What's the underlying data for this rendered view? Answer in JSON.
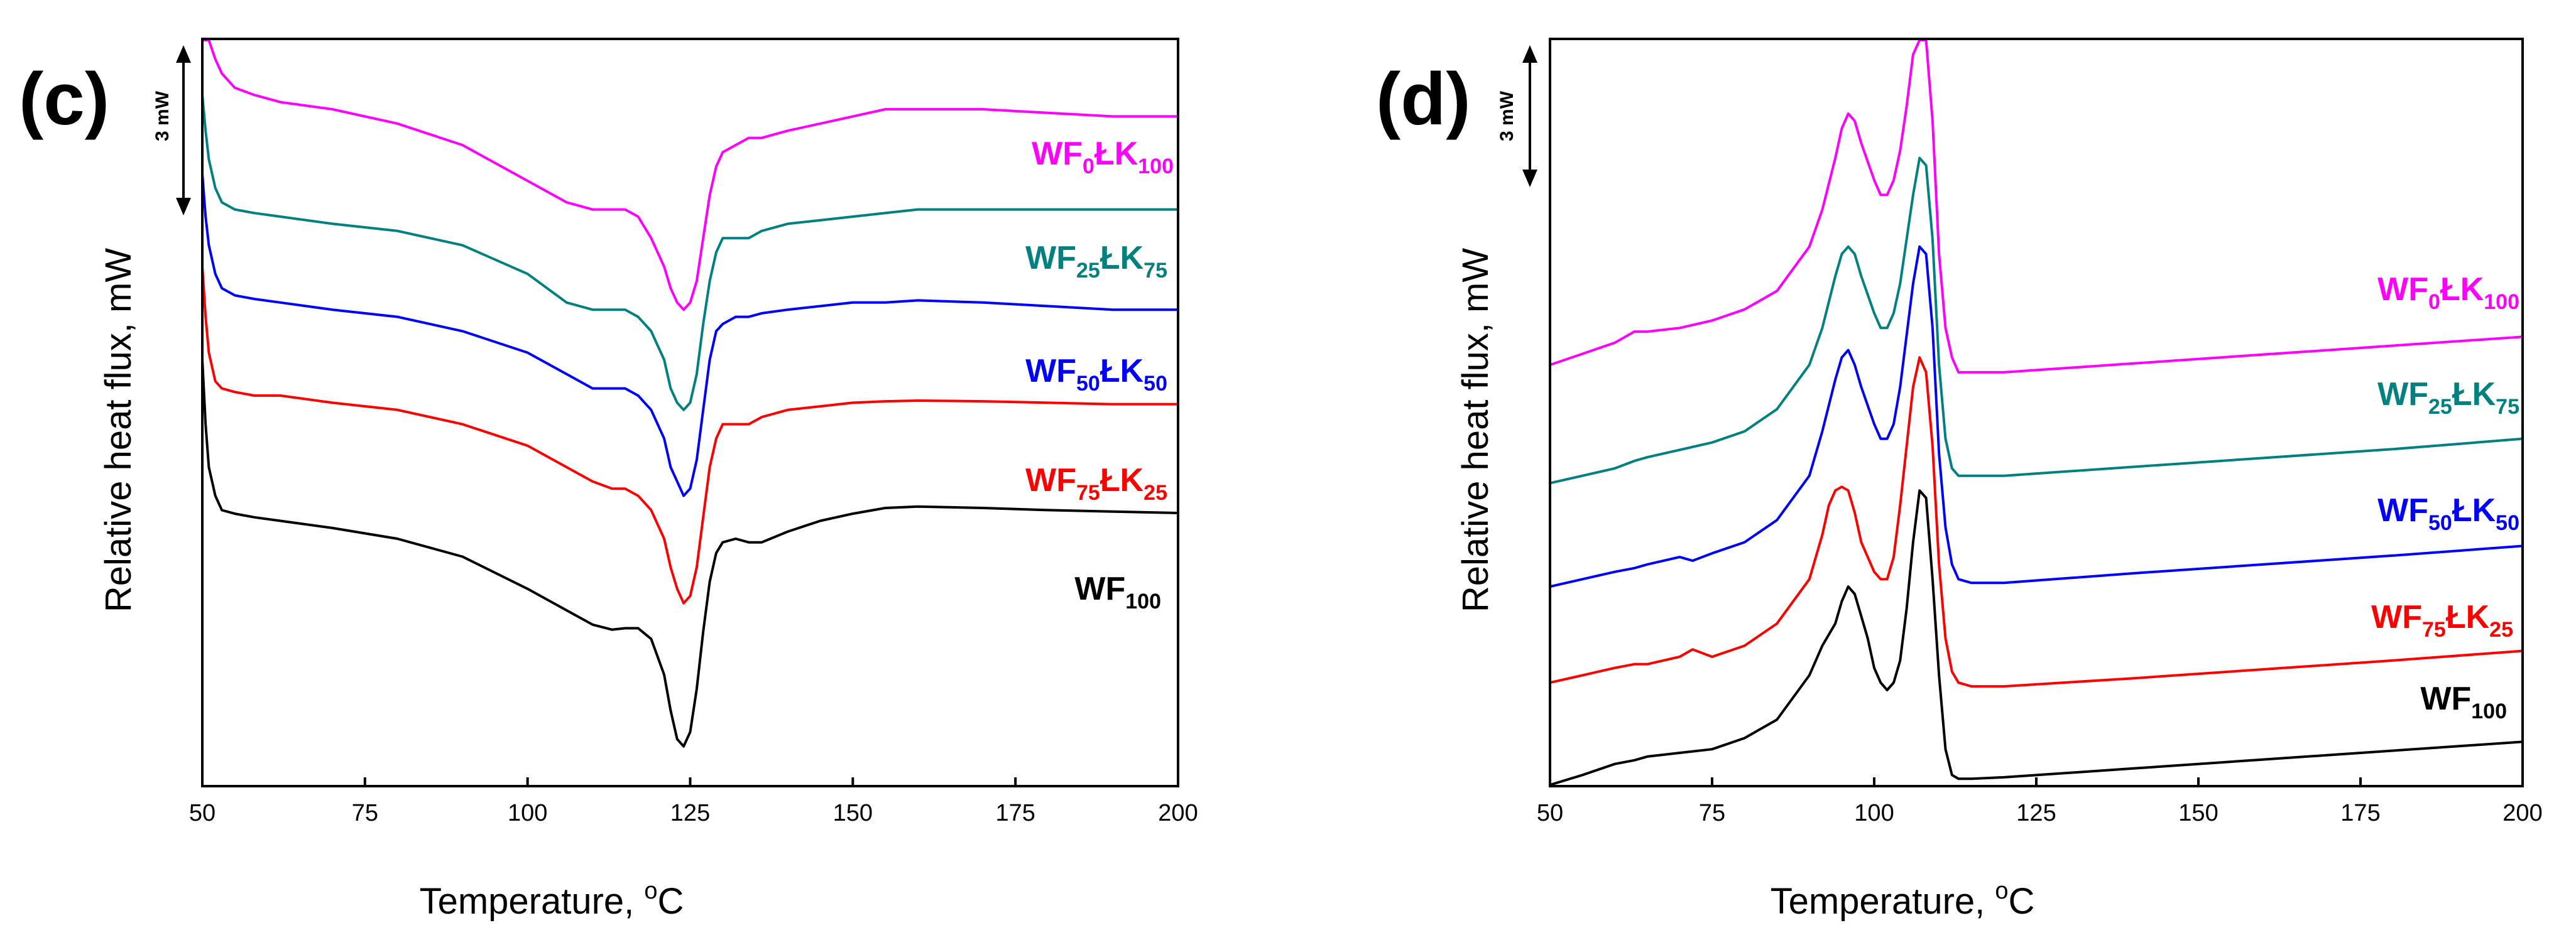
{
  "chart_data": [
    {
      "type": "line",
      "panel_label": "(c)",
      "xlabel": "Temperature, ",
      "xlabel_sup": "o",
      "xlabel_unit": "C",
      "ylabel": "Relative heat flux, mW",
      "scale_bar": "3 mW",
      "xlim": [
        50,
        200
      ],
      "ylim": [
        0,
        100
      ],
      "xticks": [
        "50",
        "75",
        "100",
        "125",
        "150",
        "175",
        "200"
      ],
      "series": [
        {
          "name": "WF0ŁK100",
          "color": "#ff00ff",
          "label": {
            "main": "WF",
            "s1": "0",
            "mid": "ŁK",
            "s2": "100"
          },
          "x": [
            50,
            51,
            52,
            53,
            55,
            58,
            62,
            70,
            80,
            90,
            100,
            106,
            110,
            113,
            115,
            117,
            119,
            121,
            122,
            123,
            124,
            125,
            126,
            127,
            128,
            129,
            130,
            132,
            134,
            136,
            140,
            145,
            150,
            155,
            160,
            165,
            170,
            180,
            190,
            200
          ],
          "y": [
            104,
            100,
            97,
            95,
            93,
            92,
            91,
            90,
            88,
            85,
            80,
            77,
            76,
            76,
            76,
            75,
            72,
            68,
            65,
            63,
            62,
            63,
            66,
            72,
            78,
            82,
            84,
            85,
            86,
            86,
            87,
            88,
            89,
            90,
            90,
            90,
            90,
            89.5,
            89,
            89
          ]
        },
        {
          "name": "WF25ŁK75",
          "color": "#008080",
          "label": {
            "main": "WF",
            "s1": "25",
            "mid": "ŁK",
            "s2": "75"
          },
          "x": [
            50,
            50.5,
            51,
            52,
            53,
            55,
            58,
            62,
            70,
            80,
            90,
            100,
            106,
            110,
            113,
            115,
            117,
            119,
            121,
            122,
            123,
            124,
            125,
            126,
            127,
            128,
            129,
            130,
            132,
            134,
            136,
            140,
            145,
            150,
            155,
            160,
            170,
            180,
            190,
            200
          ],
          "y": [
            92,
            87,
            83,
            79,
            77,
            76,
            75.5,
            75,
            74,
            73,
            71,
            67,
            63,
            62,
            62,
            62,
            61,
            59,
            55,
            51,
            49,
            48,
            49,
            53,
            60,
            66,
            70,
            72,
            72,
            72,
            73,
            74,
            74.5,
            75,
            75.5,
            76,
            76,
            76,
            76,
            76
          ]
        },
        {
          "name": "WF50ŁK50",
          "color": "#0000ff",
          "label": {
            "main": "WF",
            "s1": "50",
            "mid": "ŁK",
            "s2": "50"
          },
          "x": [
            50,
            50.5,
            51,
            52,
            53,
            55,
            58,
            62,
            70,
            80,
            90,
            100,
            106,
            110,
            113,
            115,
            117,
            119,
            121,
            122,
            123,
            124,
            125,
            126,
            127,
            128,
            129,
            130,
            132,
            134,
            136,
            140,
            145,
            150,
            155,
            160,
            170,
            180,
            190,
            200
          ],
          "y": [
            81,
            75,
            71,
            67,
            65,
            64,
            63.5,
            63,
            62,
            61,
            59,
            56,
            53,
            51,
            51,
            51,
            50,
            48,
            44,
            40,
            38,
            36,
            37,
            41,
            48,
            55,
            59,
            60,
            61,
            61,
            61.5,
            62,
            62.5,
            63,
            63,
            63.3,
            63,
            62.5,
            62,
            62
          ]
        },
        {
          "name": "WF75ŁK25",
          "color": "#ff0000",
          "label": {
            "main": "WF",
            "s1": "75",
            "mid": "ŁK",
            "s2": "25"
          },
          "x": [
            50,
            50.5,
            51,
            52,
            53,
            55,
            58,
            62,
            70,
            80,
            90,
            100,
            106,
            110,
            113,
            115,
            117,
            119,
            121,
            122,
            123,
            124,
            125,
            126,
            127,
            128,
            129,
            130,
            132,
            134,
            136,
            140,
            145,
            150,
            155,
            160,
            170,
            180,
            190,
            200
          ],
          "y": [
            68,
            61,
            56,
            52,
            51,
            50.5,
            50,
            50,
            49,
            48,
            46,
            43,
            40,
            38,
            37,
            37,
            36,
            34,
            30,
            26,
            23,
            21,
            22,
            26,
            33,
            40,
            44,
            46,
            46,
            46,
            47,
            48,
            48.5,
            49,
            49.2,
            49.3,
            49.2,
            49,
            48.8,
            48.8
          ]
        },
        {
          "name": "WF100",
          "color": "#000000",
          "label": {
            "main": "WF",
            "s1": "100",
            "mid": "",
            "s2": ""
          },
          "x": [
            50,
            50.5,
            51,
            52,
            53,
            55,
            58,
            62,
            70,
            80,
            90,
            100,
            106,
            110,
            113,
            115,
            117,
            119,
            121,
            122,
            123,
            124,
            125,
            126,
            127,
            128,
            129,
            130,
            132,
            134,
            136,
            140,
            145,
            150,
            155,
            160,
            170,
            180,
            190,
            200
          ],
          "y": [
            55,
            46,
            40,
            36,
            34,
            33.5,
            33,
            32.5,
            31.5,
            30,
            27.5,
            23,
            20,
            18,
            17.3,
            17.5,
            17.5,
            16,
            11,
            6,
            2,
            1,
            3,
            9,
            17,
            24,
            28,
            29.5,
            30,
            29.5,
            29.5,
            31,
            32.5,
            33.5,
            34.3,
            34.5,
            34.3,
            34,
            33.8,
            33.6
          ]
        }
      ]
    },
    {
      "type": "line",
      "panel_label": "(d)",
      "xlabel": "Temperature, ",
      "xlabel_sup": "o",
      "xlabel_unit": "C",
      "ylabel": "Relative heat flux, mW",
      "scale_bar": "3 mW",
      "xlim": [
        50,
        200
      ],
      "ylim": [
        0,
        100
      ],
      "xticks": [
        "50",
        "75",
        "100",
        "125",
        "150",
        "175",
        "200"
      ],
      "series": [
        {
          "name": "WF0ŁK100",
          "color": "#ff00ff",
          "label": {
            "main": "WF",
            "s1": "0",
            "mid": "ŁK",
            "s2": "100"
          },
          "x": [
            50,
            55,
            60,
            63,
            65,
            70,
            75,
            80,
            85,
            90,
            92,
            94,
            95,
            96,
            97,
            98,
            100,
            101,
            102,
            103,
            104,
            105,
            106,
            107,
            108,
            109,
            110,
            111,
            112,
            113,
            115,
            120,
            140,
            160,
            180,
            200
          ],
          "y": [
            57,
            58.5,
            60,
            61.5,
            61.5,
            62,
            63,
            64.5,
            67,
            73,
            78,
            85,
            89,
            91,
            90,
            87,
            82,
            80,
            80,
            82,
            86,
            92,
            99,
            103,
            101,
            90,
            72,
            62,
            58,
            56,
            56,
            56,
            57.2,
            58.4,
            59.6,
            60.8
          ]
        },
        {
          "name": "WF25ŁK75",
          "color": "#008080",
          "label": {
            "main": "WF",
            "s1": "25",
            "mid": "ŁK",
            "s2": "75"
          },
          "x": [
            50,
            55,
            60,
            63,
            65,
            70,
            75,
            80,
            85,
            90,
            92,
            94,
            95,
            96,
            97,
            98,
            100,
            101,
            102,
            103,
            104,
            105,
            106,
            107,
            108,
            109,
            110,
            111,
            112,
            113,
            115,
            120,
            140,
            160,
            180,
            200
          ],
          "y": [
            41,
            42,
            43,
            44,
            44.5,
            45.5,
            46.5,
            48,
            51,
            57,
            62,
            69,
            72,
            73,
            72,
            69,
            64,
            62,
            62,
            64,
            68,
            74,
            80,
            85,
            84,
            74,
            57,
            47,
            43,
            42,
            42,
            42,
            43.2,
            44.4,
            45.6,
            47
          ]
        },
        {
          "name": "WF50ŁK50",
          "color": "#0000ff",
          "label": {
            "main": "WF",
            "s1": "50",
            "mid": "ŁK",
            "s2": "50"
          },
          "x": [
            50,
            55,
            60,
            63,
            65,
            70,
            72,
            75,
            80,
            85,
            90,
            92,
            94,
            95,
            96,
            97,
            98,
            100,
            101,
            102,
            103,
            104,
            105,
            106,
            107,
            108,
            109,
            110,
            111,
            112,
            113,
            115,
            120,
            140,
            160,
            180,
            200
          ],
          "y": [
            27,
            28,
            29,
            29.5,
            30,
            31,
            30.5,
            31.5,
            33,
            36,
            42,
            48,
            55,
            58,
            59,
            57,
            54,
            49,
            47,
            47,
            49,
            54,
            61,
            68,
            73,
            72,
            62,
            45,
            35,
            30,
            28,
            27.5,
            27.5,
            28.8,
            30,
            31.2,
            32.5
          ]
        },
        {
          "name": "WF75ŁK25",
          "color": "#ff0000",
          "label": {
            "main": "WF",
            "s1": "75",
            "mid": "ŁK",
            "s2": "25"
          },
          "x": [
            50,
            55,
            60,
            63,
            65,
            70,
            72,
            75,
            80,
            85,
            90,
            92,
            93,
            94,
            95,
            96,
            97,
            98,
            100,
            101,
            102,
            103,
            104,
            105,
            106,
            107,
            108,
            109,
            110,
            111,
            112,
            113,
            115,
            120,
            140,
            160,
            180,
            200
          ],
          "y": [
            14,
            15,
            16,
            16.5,
            16.5,
            17.5,
            18.5,
            17.5,
            19,
            22,
            28,
            34,
            38,
            40,
            40.5,
            40,
            37,
            33,
            29,
            28,
            28,
            31,
            38,
            46,
            54,
            58,
            56,
            46,
            30,
            20,
            15.5,
            14,
            13.5,
            13.5,
            14.6,
            15.8,
            17,
            18.3
          ]
        },
        {
          "name": "WF100",
          "color": "#000000",
          "label": {
            "main": "WF",
            "s1": "100",
            "mid": "",
            "s2": ""
          },
          "x": [
            50,
            55,
            60,
            63,
            65,
            70,
            75,
            80,
            85,
            90,
            92,
            94,
            95,
            96,
            97,
            98,
            99,
            100,
            101,
            102,
            103,
            104,
            105,
            106,
            107,
            108,
            109,
            110,
            111,
            112,
            113,
            115,
            120,
            140,
            160,
            180,
            200
          ],
          "y": [
            0,
            1.5,
            3,
            3.5,
            4,
            4.5,
            5,
            6.5,
            9,
            15,
            19,
            22,
            25,
            27,
            26,
            23,
            20,
            16,
            14,
            13,
            14,
            17,
            24,
            33,
            40,
            39,
            28,
            15,
            5,
            1.5,
            1,
            1,
            1.2,
            2.4,
            3.6,
            4.8,
            6
          ]
        }
      ]
    }
  ]
}
